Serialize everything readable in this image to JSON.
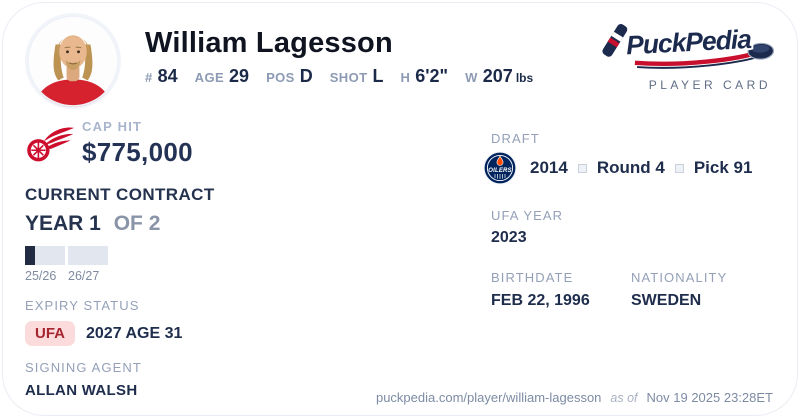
{
  "player": {
    "name": "William Lagesson",
    "stats": [
      {
        "label": "#",
        "value": "84"
      },
      {
        "label": "AGE",
        "value": "29"
      },
      {
        "label": "POS",
        "value": "D"
      },
      {
        "label": "SHOT",
        "value": "L"
      },
      {
        "label": "H",
        "value": "6'2\""
      },
      {
        "label": "W",
        "value": "207",
        "unit": "lbs"
      }
    ]
  },
  "brand": {
    "logo_text": "PuckPedia",
    "tagline": "PLAYER CARD"
  },
  "cap_hit": {
    "label": "CAP HIT",
    "value": "$775,000"
  },
  "contract": {
    "heading": "CURRENT CONTRACT",
    "year_current": "YEAR 1",
    "year_of": "OF 2",
    "seasons": [
      {
        "label": "25/26",
        "fill_pct": 25
      },
      {
        "label": "26/27",
        "fill_pct": 0
      }
    ]
  },
  "expiry": {
    "label": "EXPIRY STATUS",
    "badge": "UFA",
    "detail": "2027 AGE 31"
  },
  "agent": {
    "label": "SIGNING AGENT",
    "name": "ALLAN WALSH"
  },
  "draft": {
    "label": "DRAFT",
    "team_logo_text": "OILERS",
    "year": "2014",
    "round": "Round 4",
    "pick": "Pick 91"
  },
  "ufa_year": {
    "label": "UFA YEAR",
    "value": "2023"
  },
  "birthdate": {
    "label": "BIRTHDATE",
    "value": "FEB 22, 1996"
  },
  "nationality": {
    "label": "NATIONALITY",
    "value": "SWEDEN"
  },
  "footer": {
    "url": "puckpedia.com/player/william-lagesson",
    "as_of": "as of",
    "timestamp": "Nov 19 2025 23:28ET"
  },
  "colors": {
    "navy_text": "#1f2d4d",
    "label_gray": "#94a0b8",
    "wings_red": "#ce0e2d",
    "oilers_navy": "#01245e",
    "oilers_orange": "#ff4c00",
    "badge_bg": "#fbdbdb",
    "badge_text": "#a62630",
    "bar_fill": "#212b42",
    "bar_bg": "#e2e7ef"
  }
}
